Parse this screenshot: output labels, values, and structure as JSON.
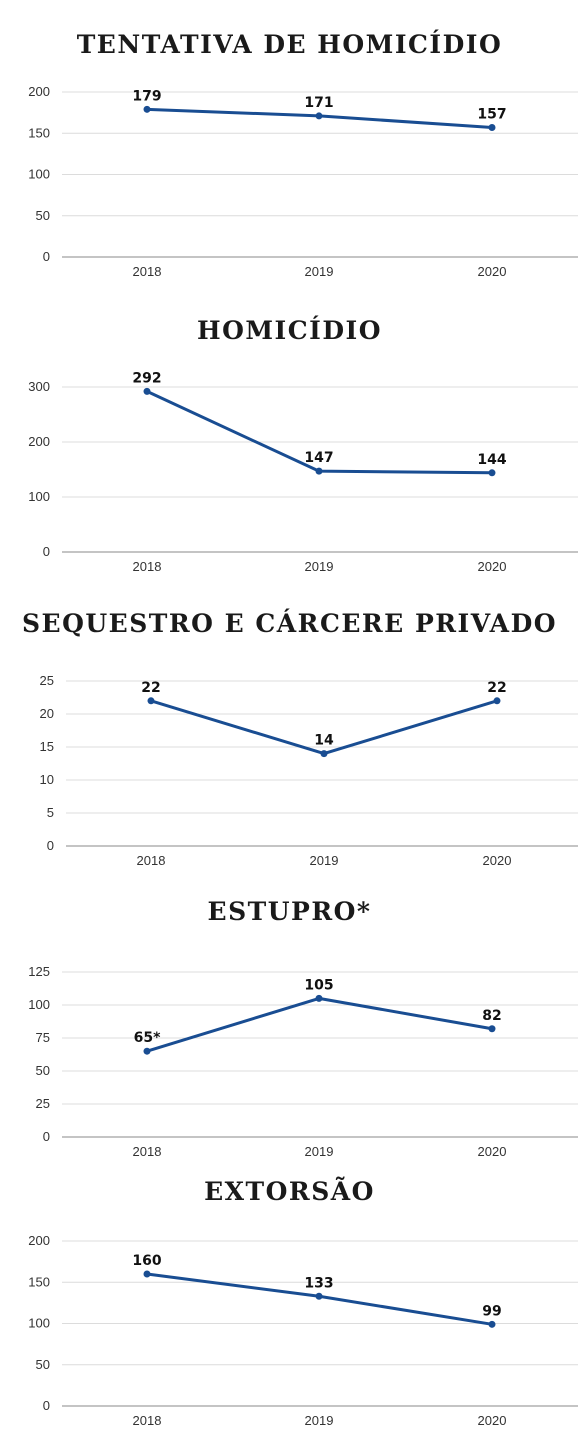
{
  "chart_data": [
    {
      "type": "line",
      "title": "TENTATIVA DE HOMICÍDIO",
      "categories": [
        "2018",
        "2019",
        "2020"
      ],
      "values": [
        179,
        171,
        157
      ],
      "data_labels": [
        "179",
        "171",
        "157"
      ],
      "ylim": [
        0,
        200
      ],
      "yticks": [
        0,
        50,
        100,
        150,
        200
      ],
      "grid": true,
      "color": "#194d92"
    },
    {
      "type": "line",
      "title": "HOMICÍDIO",
      "categories": [
        "2018",
        "2019",
        "2020"
      ],
      "values": [
        292,
        147,
        144
      ],
      "data_labels": [
        "292",
        "147",
        "144"
      ],
      "ylim": [
        0,
        300
      ],
      "yticks": [
        0,
        100,
        200,
        300
      ],
      "grid": true,
      "color": "#194d92"
    },
    {
      "type": "line",
      "title": "SEQUESTRO E CÁRCERE PRIVADO",
      "categories": [
        "2018",
        "2019",
        "2020"
      ],
      "values": [
        22,
        14,
        22
      ],
      "data_labels": [
        "22",
        "14",
        "22"
      ],
      "ylim": [
        0,
        25
      ],
      "yticks": [
        0,
        5,
        10,
        15,
        20,
        25
      ],
      "grid": true,
      "color": "#194d92"
    },
    {
      "type": "line",
      "title": "ESTUPRO*",
      "categories": [
        "2018",
        "2019",
        "2020"
      ],
      "values": [
        65,
        105,
        82
      ],
      "data_labels": [
        "65*",
        "105",
        "82"
      ],
      "ylim": [
        0,
        125
      ],
      "yticks": [
        0,
        25,
        50,
        75,
        100,
        125
      ],
      "grid": true,
      "color": "#194d92"
    },
    {
      "type": "line",
      "title": "EXTORSÃO",
      "categories": [
        "2018",
        "2019",
        "2020"
      ],
      "values": [
        160,
        133,
        99
      ],
      "data_labels": [
        "160",
        "133",
        "99"
      ],
      "ylim": [
        0,
        200
      ],
      "yticks": [
        0,
        50,
        100,
        150,
        200
      ],
      "grid": true,
      "color": "#194d92"
    }
  ]
}
